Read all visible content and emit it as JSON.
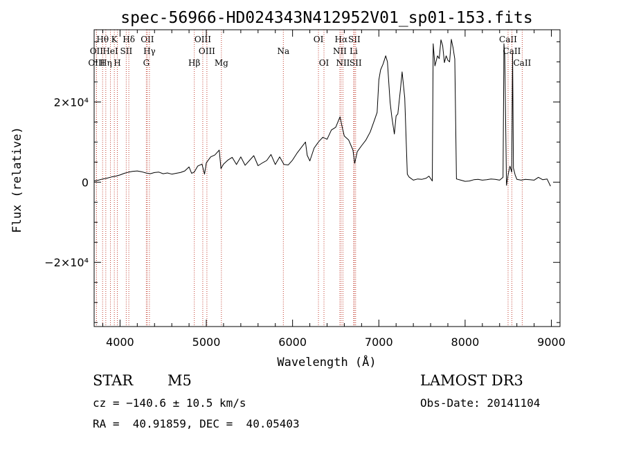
{
  "chart_data": {
    "type": "line",
    "title": "spec-56966-HD024343N412952V01_sp01-153.fits",
    "xlabel": "Wavelength (Å)",
    "ylabel": "Flux (relative)",
    "xlim": [
      3700,
      9100
    ],
    "ylim": [
      -36000,
      38000
    ],
    "x_ticks": [
      {
        "value": 4000,
        "label": "4000"
      },
      {
        "value": 5000,
        "label": "5000"
      },
      {
        "value": 6000,
        "label": "6000"
      },
      {
        "value": 7000,
        "label": "7000"
      },
      {
        "value": 8000,
        "label": "8000"
      },
      {
        "value": 9000,
        "label": "9000"
      }
    ],
    "y_ticks": [
      {
        "value": -20000,
        "label": "−2×10⁴"
      },
      {
        "value": 0,
        "label": "0"
      },
      {
        "value": 20000,
        "label": "2×10⁴"
      }
    ],
    "grid": false,
    "series": [
      {
        "color": "#000000",
        "x": [
          3700,
          3750,
          3800,
          3850,
          3900,
          3950,
          4000,
          4050,
          4100,
          4150,
          4200,
          4250,
          4300,
          4350,
          4400,
          4450,
          4500,
          4550,
          4600,
          4650,
          4700,
          4750,
          4800,
          4830,
          4860,
          4900,
          4950,
          4980,
          5000,
          5050,
          5100,
          5150,
          5170,
          5200,
          5250,
          5300,
          5350,
          5400,
          5450,
          5500,
          5550,
          5600,
          5650,
          5700,
          5750,
          5800,
          5850,
          5900,
          5950,
          6000,
          6050,
          6100,
          6150,
          6170,
          6200,
          6250,
          6300,
          6350,
          6400,
          6450,
          6500,
          6550,
          6580,
          6600,
          6650,
          6700,
          6720,
          6750,
          6800,
          6850,
          6900,
          6950,
          6980,
          7000,
          7020,
          7050,
          7080,
          7100,
          7130,
          7150,
          7180,
          7200,
          7220,
          7250,
          7270,
          7300,
          7330,
          7350,
          7400,
          7450,
          7500,
          7550,
          7580,
          7600,
          7620,
          7630,
          7650,
          7680,
          7700,
          7720,
          7740,
          7760,
          7780,
          7800,
          7820,
          7840,
          7860,
          7880,
          7900,
          7950,
          8000,
          8050,
          8100,
          8150,
          8200,
          8250,
          8300,
          8350,
          8400,
          8440,
          8450,
          8460,
          8480,
          8500,
          8520,
          8540,
          8550,
          8560,
          8580,
          8600,
          8650,
          8700,
          8750,
          8800,
          8850,
          8900,
          8950,
          8990
        ],
        "y": [
          300,
          500,
          800,
          1000,
          1300,
          1500,
          1800,
          2200,
          2500,
          2700,
          2800,
          2600,
          2300,
          2100,
          2400,
          2500,
          2100,
          2300,
          2000,
          2200,
          2400,
          2800,
          3800,
          2200,
          2500,
          4000,
          4500,
          2000,
          4800,
          6300,
          6800,
          8000,
          3400,
          4500,
          5500,
          6200,
          4400,
          6300,
          4200,
          5400,
          6600,
          4100,
          4800,
          5400,
          6900,
          4400,
          6300,
          4400,
          4300,
          5500,
          7200,
          8600,
          10000,
          6700,
          5300,
          8500,
          10000,
          11200,
          10700,
          13000,
          13700,
          16300,
          13300,
          11500,
          10500,
          8000,
          4700,
          7600,
          9100,
          10500,
          12500,
          15500,
          17400,
          25500,
          28000,
          29500,
          31500,
          30000,
          20000,
          16300,
          12000,
          16500,
          17000,
          23000,
          27500,
          21000,
          2000,
          1300,
          500,
          800,
          700,
          1000,
          1500,
          900,
          300,
          34500,
          29000,
          31500,
          30800,
          35500,
          34000,
          29800,
          31500,
          30400,
          30000,
          35600,
          33500,
          30700,
          800,
          500,
          200,
          300,
          600,
          700,
          500,
          600,
          800,
          700,
          500,
          1200,
          34500,
          31500,
          -800,
          2000,
          4000,
          2500,
          32000,
          3500,
          1800,
          700,
          500,
          700,
          600,
          500,
          1200,
          600,
          800,
          -1000
        ]
      }
    ],
    "spectral_lines": [
      {
        "label": "Hθ",
        "x": 3798
      },
      {
        "label": "K",
        "x": 3934
      },
      {
        "label": "Hδ",
        "x": 4102
      },
      {
        "label": "OII",
        "x": 4317
      },
      {
        "label": "OIII",
        "x": 4959
      },
      {
        "label": "OI",
        "x": 6300
      },
      {
        "label": "Hα",
        "x": 6563
      },
      {
        "label": "SII",
        "x": 6716
      },
      {
        "label": "CaII",
        "x": 8498
      },
      {
        "label": "OII",
        "x": 3727
      },
      {
        "label": "HeI",
        "x": 3889
      },
      {
        "label": "SII",
        "x": 4072
      },
      {
        "label": "Hγ",
        "x": 4341
      },
      {
        "label": "OIII",
        "x": 5007
      },
      {
        "label": "Na",
        "x": 5893
      },
      {
        "label": "NII",
        "x": 6548
      },
      {
        "label": "Li",
        "x": 6708
      },
      {
        "label": "CaII",
        "x": 8542
      },
      {
        "label": "OIII",
        "x": 3727
      },
      {
        "label": "Hη",
        "x": 3835
      },
      {
        "label": "H",
        "x": 3969
      },
      {
        "label": "G",
        "x": 4305
      },
      {
        "label": "Hβ",
        "x": 4861
      },
      {
        "label": "Mg",
        "x": 5175
      },
      {
        "label": "OI",
        "x": 6364
      },
      {
        "label": "NII",
        "x": 6584
      },
      {
        "label": "SII",
        "x": 6731
      },
      {
        "label": "CaII",
        "x": 8662
      }
    ]
  },
  "info": {
    "object_class": "STAR",
    "subclass": "M5",
    "survey": "LAMOST DR3",
    "cz_line": "cz = −140.6 ± 10.5 km/s",
    "obs_date_line": "Obs-Date: 20141104",
    "radec_line": "RA =  40.91859, DEC =  40.05403"
  }
}
